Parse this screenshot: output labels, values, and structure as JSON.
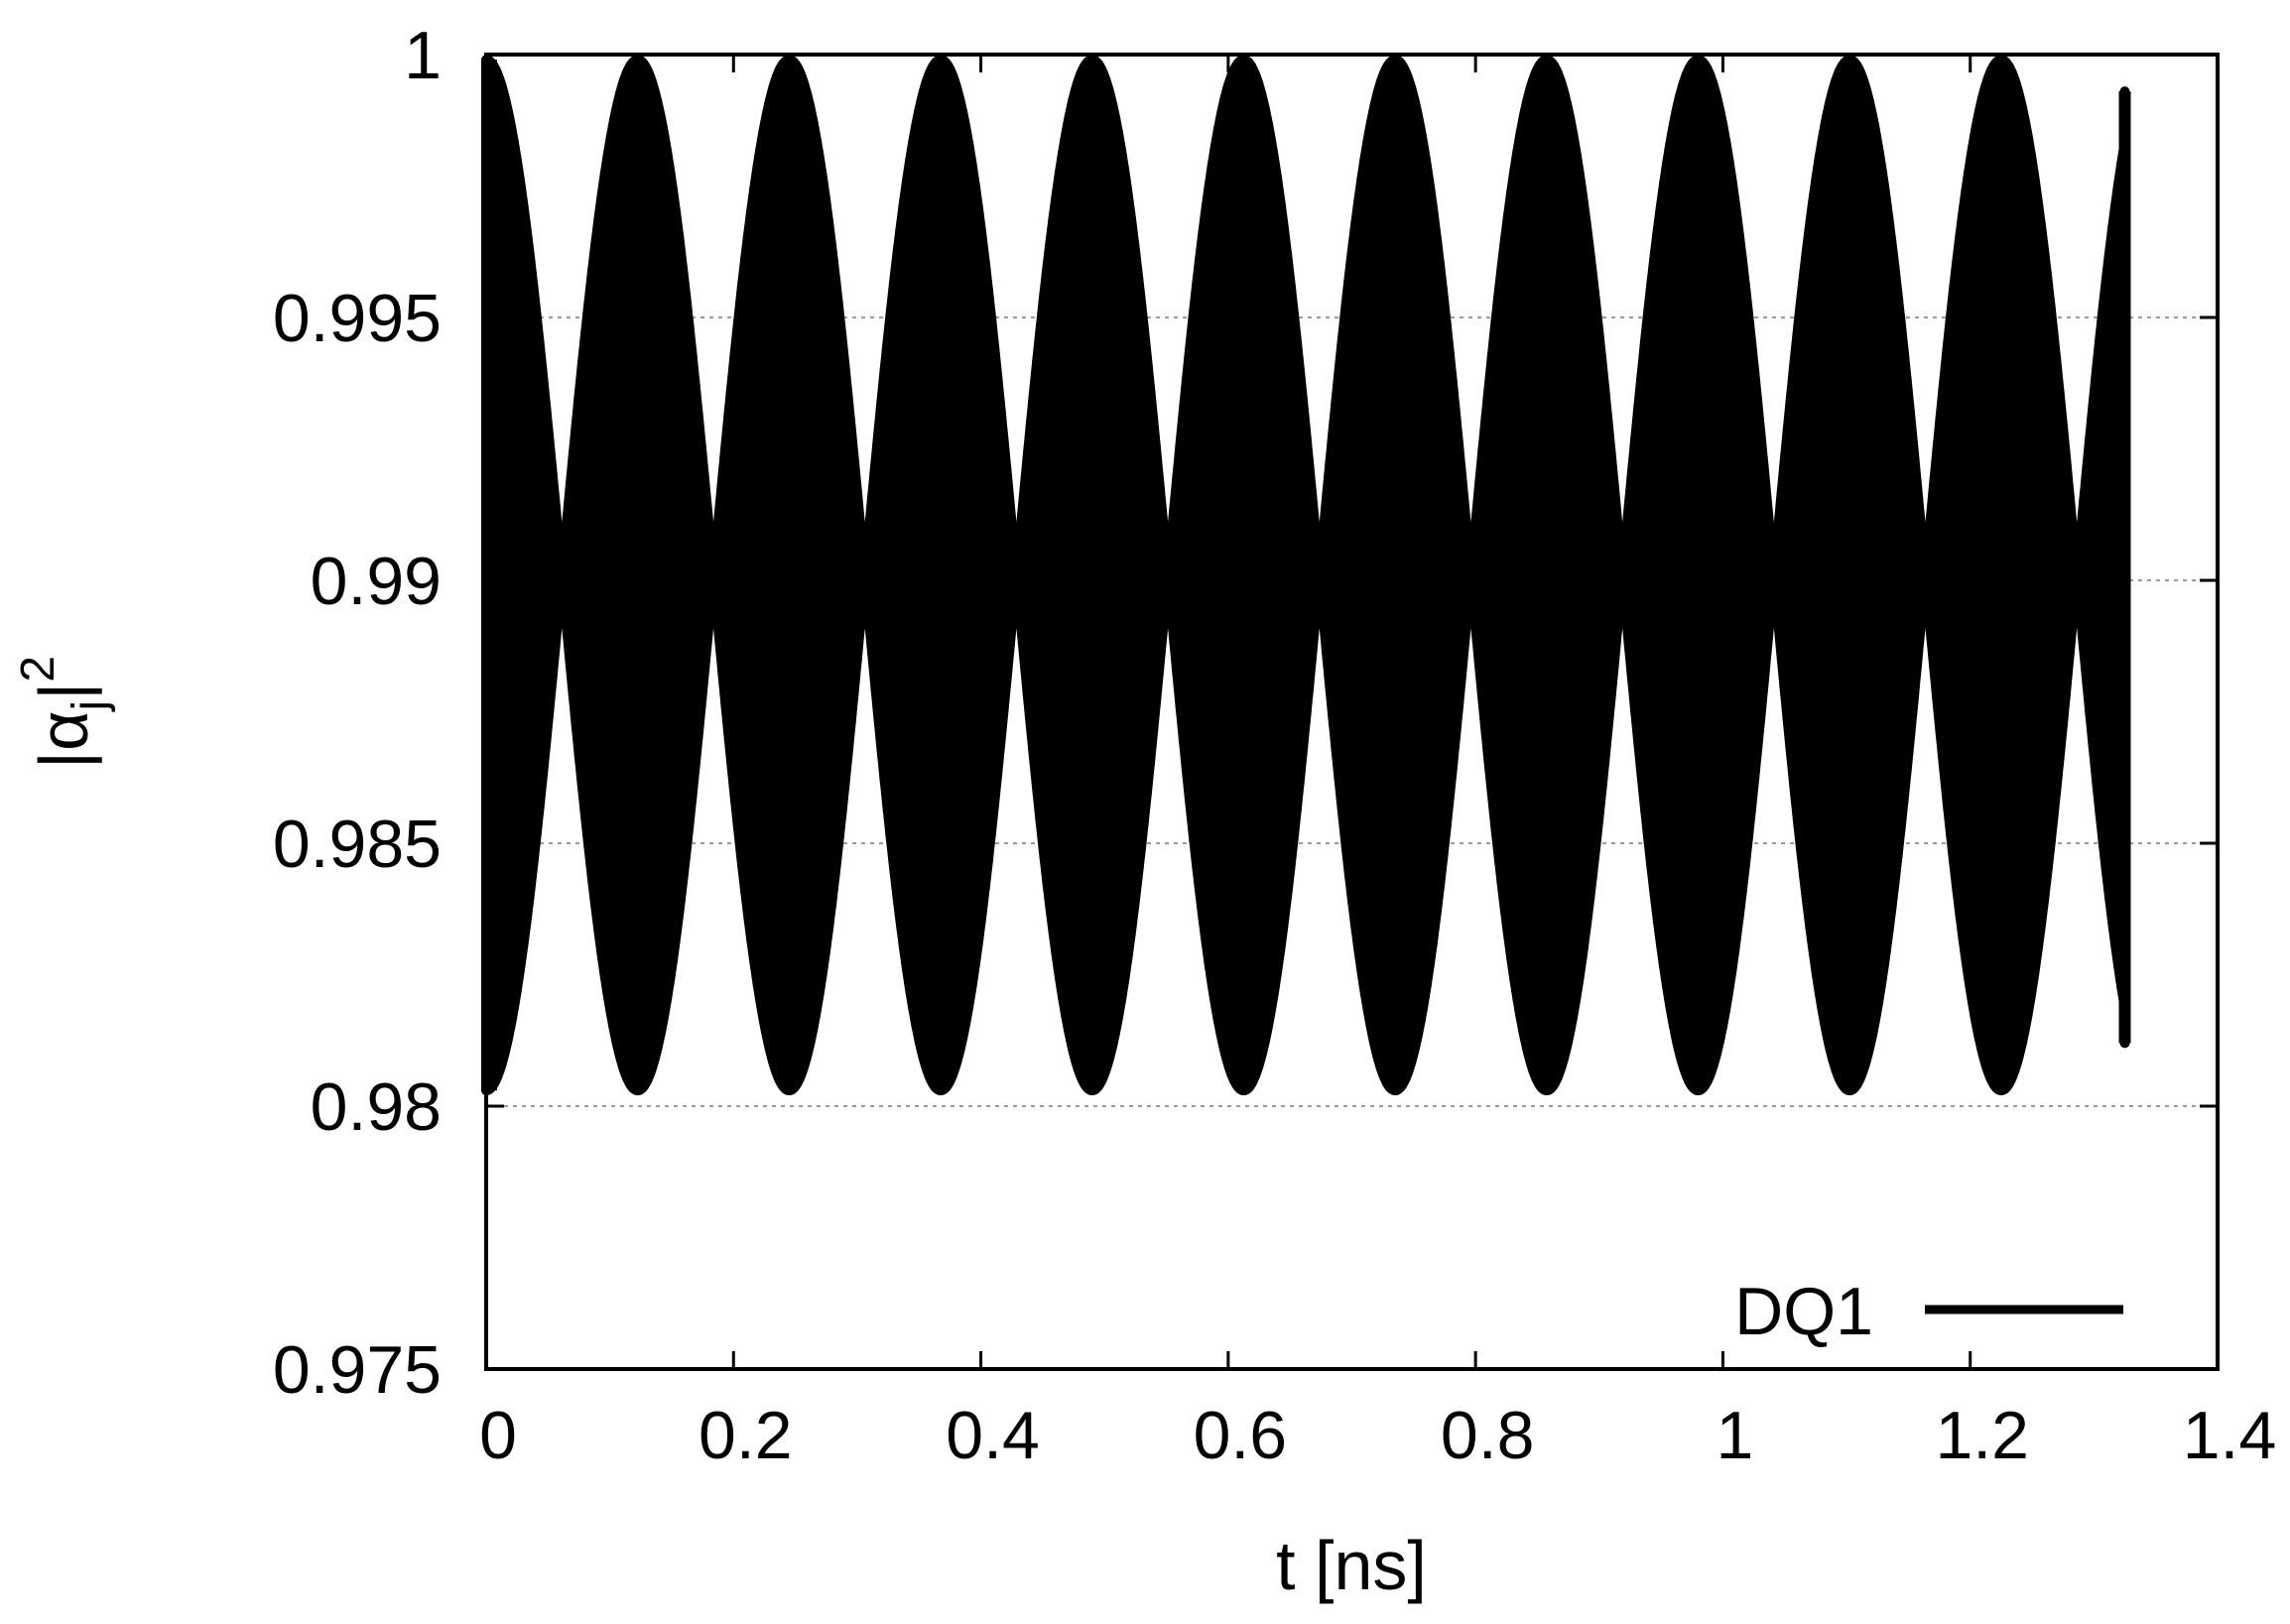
{
  "chart_data": {
    "type": "area",
    "title": "",
    "xlabel": "t [ns]",
    "ylabel": {
      "base": "|α",
      "subscript": "j",
      "close": "|",
      "superscript": "2"
    },
    "xlim": [
      0,
      1.4
    ],
    "ylim": [
      0.975,
      1.0
    ],
    "xticks": [
      {
        "value": 0,
        "label": "0"
      },
      {
        "value": 0.2,
        "label": "0.2"
      },
      {
        "value": 0.4,
        "label": "0.4"
      },
      {
        "value": 0.6,
        "label": "0.6"
      },
      {
        "value": 0.8,
        "label": "0.8"
      },
      {
        "value": 1.0,
        "label": "1"
      },
      {
        "value": 1.2,
        "label": "1.2"
      },
      {
        "value": 1.4,
        "label": "1.4"
      }
    ],
    "yticks": [
      {
        "value": 0.975,
        "label": "0.975"
      },
      {
        "value": 0.98,
        "label": "0.98"
      },
      {
        "value": 0.985,
        "label": "0.985"
      },
      {
        "value": 0.99,
        "label": "0.99"
      },
      {
        "value": 0.995,
        "label": "0.995"
      },
      {
        "value": 1.0,
        "label": "1"
      }
    ],
    "grid": {
      "horizontal": true,
      "vertical": false
    },
    "legend": {
      "placement": "bottom-right"
    },
    "series": [
      {
        "name": "DQ1",
        "color": "#000000",
        "mean": 0.9901,
        "half_amplitude_max": 0.0098,
        "envelope_period_ns": 0.1225,
        "x_start": 0,
        "x_end": 1.325,
        "end_band": [
          0.9812,
          0.9993
        ],
        "envelope_knots": [
          {
            "x": 0.0,
            "upper": 0.9999,
            "lower": 0.9803
          },
          {
            "x": 0.0613,
            "upper": 0.9901,
            "lower": 0.9901
          },
          {
            "x": 0.1225,
            "upper": 0.9999,
            "lower": 0.9803
          },
          {
            "x": 0.1838,
            "upper": 0.9901,
            "lower": 0.9901
          },
          {
            "x": 0.245,
            "upper": 0.9999,
            "lower": 0.9803
          },
          {
            "x": 0.3063,
            "upper": 0.9901,
            "lower": 0.9901
          },
          {
            "x": 0.3675,
            "upper": 0.9999,
            "lower": 0.9803
          },
          {
            "x": 0.4288,
            "upper": 0.9901,
            "lower": 0.9901
          },
          {
            "x": 0.49,
            "upper": 0.9999,
            "lower": 0.9803
          },
          {
            "x": 0.5513,
            "upper": 0.9901,
            "lower": 0.9901
          },
          {
            "x": 0.6125,
            "upper": 0.9999,
            "lower": 0.9803
          },
          {
            "x": 0.6738,
            "upper": 0.9901,
            "lower": 0.9901
          },
          {
            "x": 0.735,
            "upper": 0.9999,
            "lower": 0.9803
          },
          {
            "x": 0.7963,
            "upper": 0.9901,
            "lower": 0.9901
          },
          {
            "x": 0.8575,
            "upper": 0.9999,
            "lower": 0.9803
          },
          {
            "x": 0.9188,
            "upper": 0.9901,
            "lower": 0.9901
          },
          {
            "x": 0.98,
            "upper": 0.9999,
            "lower": 0.9803
          },
          {
            "x": 1.0413,
            "upper": 0.9901,
            "lower": 0.9901
          },
          {
            "x": 1.1025,
            "upper": 0.9999,
            "lower": 0.9803
          },
          {
            "x": 1.1638,
            "upper": 0.9901,
            "lower": 0.9901
          },
          {
            "x": 1.225,
            "upper": 0.9999,
            "lower": 0.9803
          },
          {
            "x": 1.2863,
            "upper": 0.9901,
            "lower": 0.9901
          },
          {
            "x": 1.325,
            "upper": 0.9993,
            "lower": 0.9812
          }
        ]
      }
    ]
  }
}
